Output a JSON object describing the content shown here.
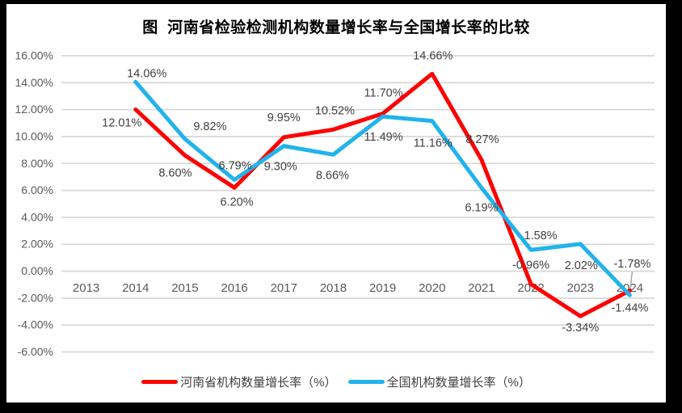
{
  "title": "图  河南省检验检测机构数量增长率与全国增长率的比较",
  "frame": {
    "border_color": "#000000",
    "chart_background": "#ffffff"
  },
  "chart_data": {
    "type": "line",
    "title": "图  河南省检验检测机构数量增长率与全国增长率的比较",
    "categories": [
      "2013",
      "2014",
      "2015",
      "2016",
      "2017",
      "2018",
      "2019",
      "2020",
      "2021",
      "2022",
      "2023",
      "2024"
    ],
    "series": [
      {
        "name": "河南省机构数量增长率（%）",
        "color": "#fe0000",
        "values": [
          null,
          12.01,
          8.6,
          6.2,
          9.95,
          10.52,
          11.7,
          14.66,
          8.27,
          -0.96,
          -3.34,
          -1.44
        ],
        "data_labels": [
          "",
          "12.01%",
          "8.60%",
          "6.20%",
          "9.95%",
          "10.52%",
          "11.70%",
          "14.66%",
          "8.27%",
          "-0.96%",
          "-3.34%",
          "-1.44%"
        ],
        "label_offsets": [
          null,
          [
            -17,
            16
          ],
          [
            -12,
            21
          ],
          [
            3,
            17
          ],
          [
            0,
            -25
          ],
          [
            2,
            -24
          ],
          [
            1,
            -26
          ],
          [
            1,
            -23
          ],
          [
            1,
            -26
          ],
          [
            0,
            -24
          ],
          [
            0,
            14
          ],
          [
            0,
            21
          ]
        ]
      },
      {
        "name": "全国机构数量增长率（%）",
        "color": "#21b3eb",
        "values": [
          null,
          14.06,
          9.82,
          6.79,
          9.3,
          8.66,
          11.49,
          11.16,
          6.19,
          1.58,
          2.02,
          -1.78
        ],
        "data_labels": [
          "",
          "14.06%",
          "9.82%",
          "6.79%",
          "9.30%",
          "8.66%",
          "11.49%",
          "11.16%",
          "6.19%",
          "1.58%",
          "2.02%",
          "-1.78%"
        ],
        "label_offsets": [
          null,
          [
            14,
            -11
          ],
          [
            31,
            -16
          ],
          [
            1,
            -18
          ],
          [
            -4,
            25
          ],
          [
            -1,
            25
          ],
          [
            1,
            25
          ],
          [
            1,
            27
          ],
          [
            0,
            24
          ],
          [
            12,
            -18
          ],
          [
            1,
            26
          ],
          [
            3,
            -39
          ]
        ],
        "leader_line_index": 11
      }
    ],
    "ylim": [
      -6,
      16
    ],
    "ytick_step": 2,
    "ytick_labels": [
      "16.00%",
      "14.00%",
      "12.00%",
      "10.00%",
      "8.00%",
      "6.00%",
      "4.00%",
      "2.00%",
      "0.00%",
      "-2.00%",
      "-4.00%",
      "-6.00%"
    ],
    "grid": true,
    "legend_position": "bottom",
    "styles": {
      "gridline_color": "#d9d9d9",
      "axis_text_color": "#595959",
      "data_label_color": "#3f3f3f",
      "leader_line_color": "#a6a6a6"
    }
  }
}
